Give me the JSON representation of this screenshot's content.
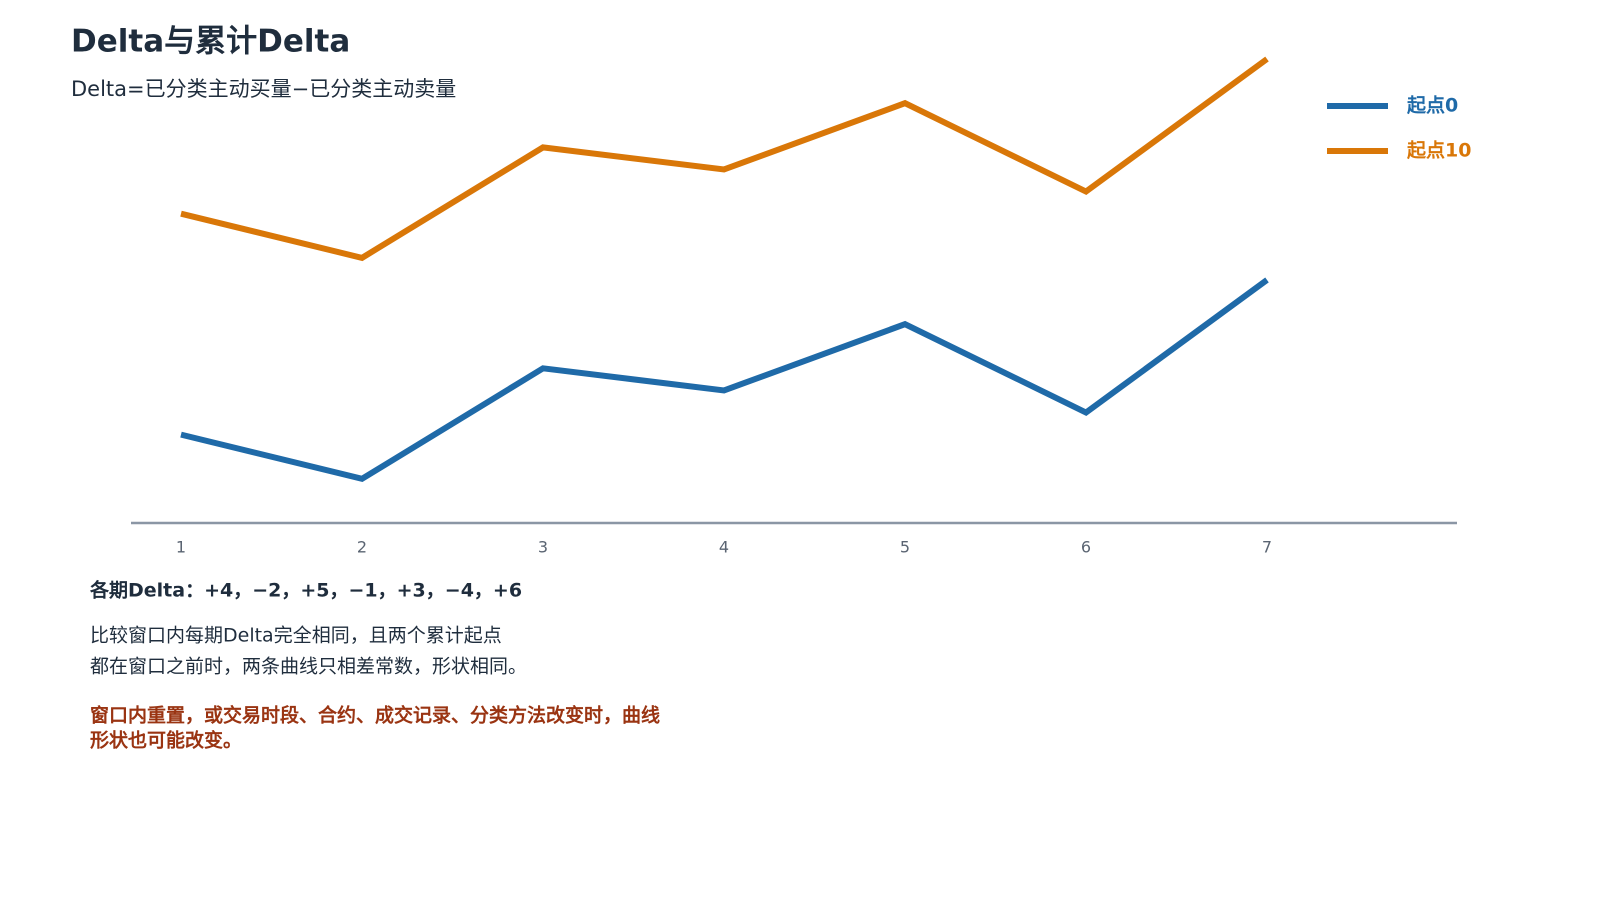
{
  "chart_data": {
    "type": "line",
    "title": "Delta与累计Delta",
    "subtitle": "Delta=已分类主动买量−已分类主动卖量",
    "categories": [
      "1",
      "2",
      "3",
      "4",
      "5",
      "6",
      "7"
    ],
    "series": [
      {
        "name": "起点0",
        "color": "#1f6aa8",
        "values": [
          4,
          2,
          7,
          6,
          9,
          5,
          11
        ]
      },
      {
        "name": "起点10",
        "color": "#d97708",
        "values": [
          14,
          12,
          17,
          16,
          19,
          15,
          21
        ]
      }
    ],
    "ylim": [
      0,
      21
    ],
    "grid": false,
    "legend": "top-right",
    "notes": [
      "各期Delta：+4，−2，+5，−1，+3，−4，+6",
      "比较窗口内每期Delta完全相同，且两个累计起点",
      "都在窗口之前时，两条曲线只相差常数，形状相同。",
      "窗口内重置，或交易时段、合约、成交记录、分类方法改变时，曲线",
      "形状也可能改变。"
    ]
  }
}
